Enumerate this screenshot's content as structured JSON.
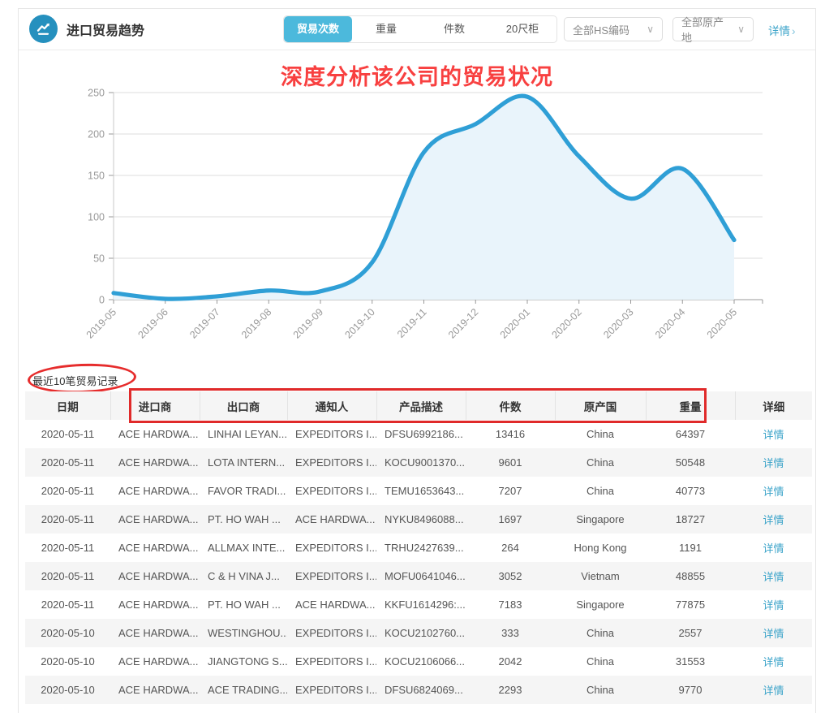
{
  "header": {
    "title": "进口贸易趋势",
    "tabs": [
      {
        "label": "贸易次数",
        "active": true
      },
      {
        "label": "重量",
        "active": false
      },
      {
        "label": "件数",
        "active": false
      },
      {
        "label": "20尺柜",
        "active": false
      }
    ],
    "filters": {
      "hs_code": "全部HS编码",
      "origin": "全部原产地"
    },
    "detail_link": "详情"
  },
  "icons": {
    "chevron_down": "∨",
    "chevron_right": "›"
  },
  "annotations": {
    "chart_title": "深度分析该公司的贸易状况",
    "records_label": "最近10笔贸易记录"
  },
  "chart_data": {
    "type": "area",
    "title": "",
    "x": [
      "2019-05",
      "2019-06",
      "2019-07",
      "2019-08",
      "2019-09",
      "2019-10",
      "2019-11",
      "2019-12",
      "2020-01",
      "2020-02",
      "2020-03",
      "2020-04",
      "2020-05"
    ],
    "series": [
      {
        "name": "贸易次数",
        "values": [
          8,
          1,
          4,
          11,
          10,
          45,
          178,
          212,
          245,
          173,
          122,
          158,
          72
        ]
      }
    ],
    "ylim": [
      0,
      250
    ],
    "yticks": [
      0,
      50,
      100,
      150,
      200,
      250
    ],
    "grid": true,
    "legend": "none",
    "line_color": "#2f9fd6",
    "fill_color": "#e9f4fb",
    "grid_color": "#dcdcdc",
    "axis_color": "#999999"
  },
  "table": {
    "columns": [
      "日期",
      "进口商",
      "出口商",
      "通知人",
      "产品描述",
      "件数",
      "原产国",
      "重量",
      "详细"
    ],
    "detail_label": "详情",
    "rows": [
      [
        "2020-05-11",
        "ACE HARDWA...",
        "LINHAI LEYAN...",
        "EXPEDITORS I...",
        "DFSU6992186...",
        "13416",
        "China",
        "64397"
      ],
      [
        "2020-05-11",
        "ACE HARDWA...",
        "LOTA INTERN...",
        "EXPEDITORS I...",
        "KOCU9001370...",
        "9601",
        "China",
        "50548"
      ],
      [
        "2020-05-11",
        "ACE HARDWA...",
        "FAVOR TRADI...",
        "EXPEDITORS I...",
        "TEMU1653643...",
        "7207",
        "China",
        "40773"
      ],
      [
        "2020-05-11",
        "ACE HARDWA...",
        "PT. HO WAH ...",
        "ACE HARDWA...",
        "NYKU8496088...",
        "1697",
        "Singapore",
        "18727"
      ],
      [
        "2020-05-11",
        "ACE HARDWA...",
        "ALLMAX INTE...",
        "EXPEDITORS I...",
        "TRHU2427639...",
        "264",
        "Hong Kong",
        "1191"
      ],
      [
        "2020-05-11",
        "ACE HARDWA...",
        "C & H VINA J...",
        "EXPEDITORS I...",
        "MOFU0641046...",
        "3052",
        "Vietnam",
        "48855"
      ],
      [
        "2020-05-11",
        "ACE HARDWA...",
        "PT. HO WAH ...",
        "ACE HARDWA...",
        "KKFU1614296:...",
        "7183",
        "Singapore",
        "77875"
      ],
      [
        "2020-05-10",
        "ACE HARDWA...",
        "WESTINGHOU...",
        "EXPEDITORS I...",
        "KOCU2102760...",
        "333",
        "China",
        "2557"
      ],
      [
        "2020-05-10",
        "ACE HARDWA...",
        "JIANGTONG S...",
        "EXPEDITORS I...",
        "KOCU2106066...",
        "2042",
        "China",
        "31553"
      ],
      [
        "2020-05-10",
        "ACE HARDWA...",
        "ACE TRADING...",
        "EXPEDITORS I...",
        "DFSU6824069...",
        "2293",
        "China",
        "9770"
      ]
    ]
  },
  "colors": {
    "accent": "#4cb9dc",
    "icon_bg": "#2590be",
    "link": "#3aa3c9",
    "annotation_red": "#f84040",
    "shape_red": "#e02a2a",
    "zebra": "#f5f5f5"
  }
}
